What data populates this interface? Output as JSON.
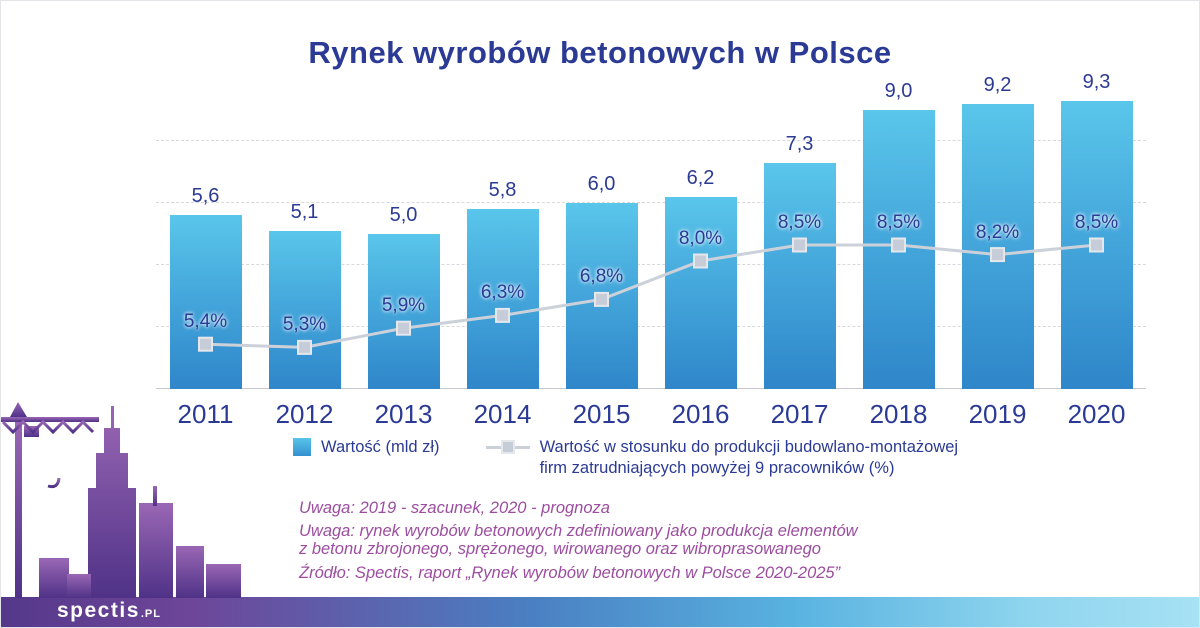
{
  "title": "Rynek wyrobów betonowych w Polsce",
  "chart_data": {
    "type": "bar+line",
    "categories": [
      "2011",
      "2012",
      "2013",
      "2014",
      "2015",
      "2016",
      "2017",
      "2018",
      "2019",
      "2020"
    ],
    "series": [
      {
        "name": "Wartość (mld zł)",
        "type": "bar",
        "values": [
          5.6,
          5.1,
          5.0,
          5.8,
          6.0,
          6.2,
          7.3,
          9.0,
          9.2,
          9.3
        ],
        "labels": [
          "5,6",
          "5,1",
          "5,0",
          "5,8",
          "6,0",
          "6,2",
          "7,3",
          "9,0",
          "9,2",
          "9,3"
        ]
      },
      {
        "name": "Wartość w stosunku do produkcji budowlano-montażowej firm zatrudniających powyżej 9 pracowników (%)",
        "type": "line",
        "values": [
          5.4,
          5.3,
          5.9,
          6.3,
          6.8,
          8.0,
          8.5,
          8.5,
          8.2,
          8.5
        ],
        "labels": [
          "5,4%",
          "5,3%",
          "5,9%",
          "6,3%",
          "6,8%",
          "8,0%",
          "8,5%",
          "8,5%",
          "8,2%",
          "8,5%"
        ]
      }
    ],
    "ylim": [
      0,
      10
    ],
    "gridlines": [
      2,
      4,
      6,
      8
    ],
    "grid": "dashed-horizontal",
    "legend_position": "bottom",
    "bar_color_top": "#5ac6ea",
    "bar_color_bottom": "#2f86c9",
    "line_color": "#ccd1d9",
    "marker_color": "#c7cdd8",
    "marker_border": "#e4e7ec",
    "text_color": "#2b3a94"
  },
  "legend": {
    "bar_label": "Wartość (mld zł)",
    "line_label_line1": "Wartość w stosunku do produkcji budowlano-montażowej",
    "line_label_line2": "firm zatrudniających powyżej 9 pracowników (%)"
  },
  "notes": {
    "note1": "Uwaga: 2019 - szacunek, 2020 - prognoza",
    "note2_line1": "Uwaga: rynek wyrobów betonowych zdefiniowany jako produkcja elementów",
    "note2_line2": "z betonu zbrojonego, sprężonego, wirowanego oraz wibroprasowanego",
    "source": "Źródło: Spectis, raport „Rynek wyrobów betonowych w Polsce 2020-2025”"
  },
  "footer": {
    "logo_text": "spectis",
    "logo_suffix": ".PL"
  }
}
